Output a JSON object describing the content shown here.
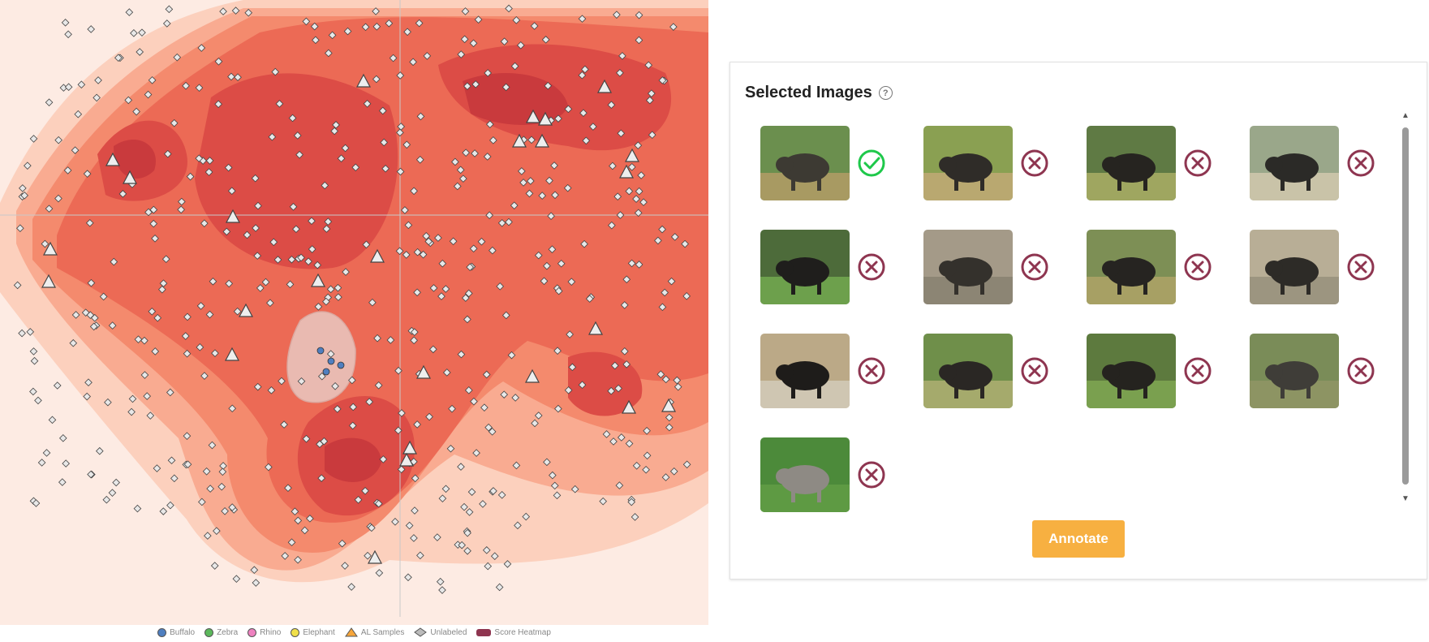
{
  "legend": {
    "items": [
      {
        "label": "Buffalo",
        "type": "dot",
        "color": "#4f7fc0"
      },
      {
        "label": "Zebra",
        "type": "dot",
        "color": "#5cb85c"
      },
      {
        "label": "Rhino",
        "type": "dot",
        "color": "#ee82c0"
      },
      {
        "label": "Elephant",
        "type": "dot",
        "color": "#f0e04a"
      },
      {
        "label": "AL Samples",
        "type": "triangle",
        "color": "#f7a63a"
      },
      {
        "label": "Unlabeled",
        "type": "diamond",
        "color": "#bbbbbb"
      },
      {
        "label": "Score Heatmap",
        "type": "rect",
        "color": "#8e3550"
      }
    ]
  },
  "images_panel": {
    "title": "Selected Images",
    "help_icon": "help-circle-icon",
    "images": [
      {
        "label": "buffalo-1",
        "status": "accepted",
        "icon": "check-circle-icon"
      },
      {
        "label": "buffalo-2",
        "status": "rejected",
        "icon": "x-circle-icon"
      },
      {
        "label": "buffalo-3",
        "status": "rejected",
        "icon": "x-circle-icon"
      },
      {
        "label": "buffalo-4",
        "status": "rejected",
        "icon": "x-circle-icon"
      },
      {
        "label": "buffalo-5",
        "status": "rejected",
        "icon": "x-circle-icon"
      },
      {
        "label": "buffalo-6",
        "status": "rejected",
        "icon": "x-circle-icon"
      },
      {
        "label": "buffalo-7",
        "status": "rejected",
        "icon": "x-circle-icon"
      },
      {
        "label": "buffalo-8",
        "status": "rejected",
        "icon": "x-circle-icon"
      },
      {
        "label": "buffalo-9",
        "status": "rejected",
        "icon": "x-circle-icon"
      },
      {
        "label": "buffalo-10",
        "status": "rejected",
        "icon": "x-circle-icon"
      },
      {
        "label": "buffalo-11",
        "status": "rejected",
        "icon": "x-circle-icon"
      },
      {
        "label": "rhino-1",
        "status": "rejected",
        "icon": "x-circle-icon"
      },
      {
        "label": "rhino-2",
        "status": "rejected",
        "icon": "x-circle-icon"
      }
    ],
    "annotate_label": "Annotate"
  },
  "colors": {
    "accept": "#1ec84a",
    "reject": "#8e3550",
    "annotate": "#f7b041",
    "heat_levels": [
      "#fdebe3",
      "#fcd0bd",
      "#f9ab91",
      "#f48a6d",
      "#ec6a55",
      "#dc4c46",
      "#c93a3d"
    ]
  }
}
